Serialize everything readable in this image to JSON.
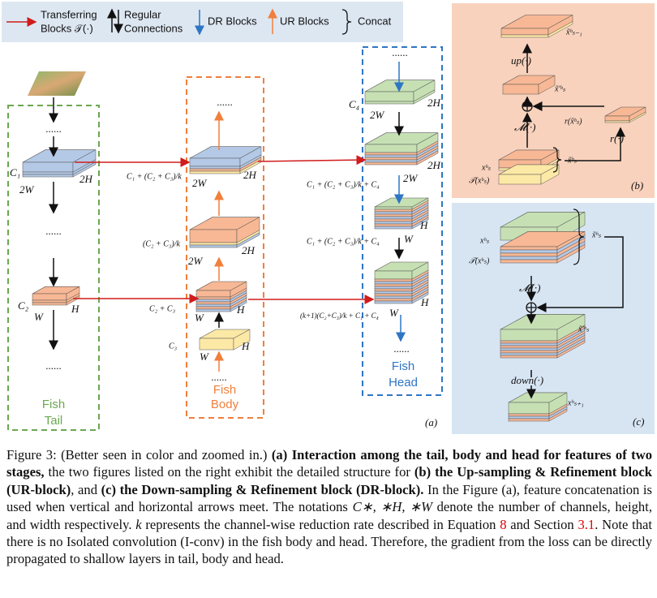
{
  "legend": {
    "transfer": [
      "Transferring",
      "Blocks 𝒯(·)"
    ],
    "regular": [
      "Regular",
      "Connections"
    ],
    "dr": "DR Blocks",
    "ur": "UR Blocks",
    "concat": "Concat"
  },
  "panel_a": {
    "tail": {
      "dots": [
        "......",
        "......",
        "......"
      ],
      "c1": "C₁",
      "w1": "2W",
      "h1": "2H",
      "c2": "C₂",
      "w2": "W",
      "h2": "H",
      "name": [
        "Fish",
        "Tail"
      ]
    },
    "body": {
      "dots": [
        "......",
        "......"
      ],
      "label1": "C₁ + (C₂ + C₃)/k",
      "w1": "2W",
      "h1": "2H",
      "label2": "(C₂ + C₃)/k",
      "w2": "2W",
      "h2": "2H",
      "label3": "C₂ + C₃",
      "w3": "W",
      "h3": "H",
      "label4": "C₃",
      "w4": "W",
      "h4": "H",
      "name": [
        "Fish",
        "Body"
      ]
    },
    "head": {
      "dots": [
        "......",
        "......"
      ],
      "c4": "C₄",
      "w1": "2W",
      "h1": "2H",
      "h2": "2H",
      "w2": "2W",
      "label2": "C₁ + (C₂ + C₃)/k + C₄",
      "h3": "H",
      "w3": "W",
      "label3": "C₁ + (C₂ + C₃)/k + C₄",
      "h4": "H",
      "w4": "W",
      "label4": "(k+1)(C₂+C₃)/k + C₁ + C₄",
      "name": [
        "Fish",
        "Head"
      ]
    },
    "tag": "(a)"
  },
  "panel_b": {
    "out": "x̃ᵇₛ₋₁",
    "up": "up(·)",
    "mid": "x̃′ᵇₛ",
    "m": "𝓜(·)",
    "r_out": "r(x̃ᵇₛ)",
    "r": "r(·)",
    "x": "xᵇₛ",
    "tx": "𝒯(xᵇₛ)",
    "xt": "x̃ᵇₛ",
    "tag": "(b)"
  },
  "panel_c": {
    "x": "xʰₛ",
    "tx": "𝒯(xʰₛ)",
    "xt": "x̃ʰₛ",
    "m": "𝓜(·)",
    "mid": "x̃′ʰₛ",
    "down": "down(·)",
    "out": "xʰₛ₊₁",
    "tag": "(c)"
  },
  "caption": [
    "Figure 3: (Better seen in color and zoomed in.) ",
    "(a) Interaction among the tail, body and head for features of two stages,",
    " the two figures listed on the right exhibit the detailed structure for ",
    "(b) the Up-sampling & Refinement block (UR-block)",
    ", and ",
    "(c) the Down-sampling & Refinement block (DR-block).",
    " In the Figure (a), feature concatenation is used when vertical and horizontal arrows meet. The notations ",
    "C∗, ∗H, ∗W",
    " denote the number of channels, height, and width respectively. ",
    "k",
    " represents the channel-wise reduction rate described in Equation ",
    "8",
    " and Section ",
    "3.1",
    ". Note that there is no Isolated convolution (I-conv) in the fish body and head. Therefore, the gradient from the loss can be directly propagated to shallow layers in tail, body and head."
  ]
}
